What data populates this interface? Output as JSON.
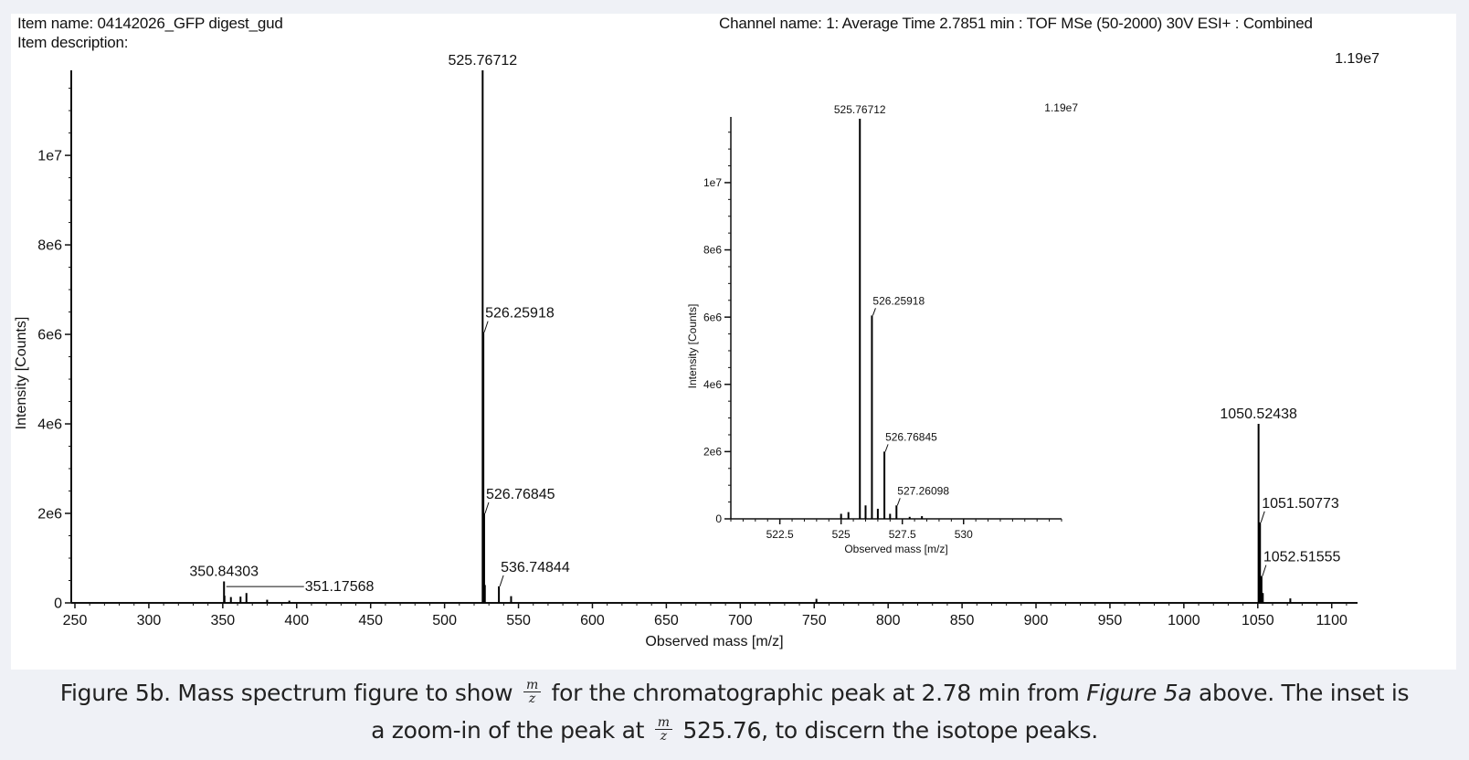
{
  "header": {
    "item_name": "Item name: 04142026_GFP digest_gud",
    "item_description": "Item description:",
    "channel_name": "Channel name: 1: Average Time 2.7851 min : TOF MSe (50-2000) 30V ESI+ : Combined"
  },
  "caption": {
    "prefix": "Figure 5b. Mass spectrum figure to show",
    "mid": "for the chromatographic peak at 2.78 min from",
    "ref": "Figure 5a",
    "after_ref": "above. The inset is",
    "line2_prefix": "a zoom-in of the peak at",
    "line2_suffix": "525.76, to discern the isotope peaks.",
    "frac_num": "m",
    "frac_den": "z"
  },
  "chart_data": [
    {
      "type": "line",
      "name": "main-spectrum",
      "xlabel": "Observed mass [m/z]",
      "ylabel": "Intensity [Counts]",
      "xlim": [
        250,
        1115
      ],
      "ylim": [
        0,
        11900000
      ],
      "max_label": "1.19e7",
      "x_ticks": [
        250,
        300,
        350,
        400,
        450,
        500,
        550,
        600,
        650,
        700,
        750,
        800,
        850,
        900,
        950,
        1000,
        1050,
        1100
      ],
      "y_ticks": [
        {
          "v": 0,
          "label": "0"
        },
        {
          "v": 2000000,
          "label": "2e6"
        },
        {
          "v": 4000000,
          "label": "4e6"
        },
        {
          "v": 6000000,
          "label": "6e6"
        },
        {
          "v": 8000000,
          "label": "8e6"
        },
        {
          "v": 10000000,
          "label": "1e7"
        }
      ],
      "peaks": [
        {
          "x": 350.84303,
          "y": 480000
        },
        {
          "x": 351.17568,
          "y": 160000
        },
        {
          "x": 355.5,
          "y": 130000
        },
        {
          "x": 362.0,
          "y": 140000
        },
        {
          "x": 366.0,
          "y": 220000
        },
        {
          "x": 380.0,
          "y": 70000
        },
        {
          "x": 395.0,
          "y": 50000
        },
        {
          "x": 525.76712,
          "y": 11900000
        },
        {
          "x": 526.25918,
          "y": 6050000
        },
        {
          "x": 526.76845,
          "y": 2000000
        },
        {
          "x": 527.26098,
          "y": 400000
        },
        {
          "x": 536.74844,
          "y": 370000
        },
        {
          "x": 545.0,
          "y": 150000
        },
        {
          "x": 751.5,
          "y": 90000
        },
        {
          "x": 1050.52438,
          "y": 4000000
        },
        {
          "x": 1051.50773,
          "y": 1800000
        },
        {
          "x": 1052.51555,
          "y": 600000
        },
        {
          "x": 1053.4,
          "y": 220000
        },
        {
          "x": 1072.0,
          "y": 100000
        }
      ],
      "labels": [
        {
          "text": "525.76712",
          "x": 525.76712,
          "y": 11900000,
          "style": "top"
        },
        {
          "text": "526.25918",
          "x": 526.25918,
          "y": 6050000,
          "style": "leader"
        },
        {
          "text": "526.76845",
          "x": 526.76845,
          "y": 2000000,
          "style": "leader"
        },
        {
          "text": "536.74844",
          "x": 536.74844,
          "y": 370000,
          "style": "leader"
        },
        {
          "text": "350.84303",
          "x": 350.84303,
          "y": 480000,
          "style": "top"
        },
        {
          "text": "351.17568",
          "x": 351.17568,
          "y": 160000,
          "style": "dash"
        },
        {
          "text": "1050.52438",
          "x": 1050.52438,
          "y": 4000000,
          "style": "top"
        },
        {
          "text": "1051.50773",
          "x": 1051.50773,
          "y": 1800000,
          "style": "leader"
        },
        {
          "text": "1052.51555",
          "x": 1052.51555,
          "y": 600000,
          "style": "leader"
        }
      ]
    },
    {
      "type": "line",
      "name": "inset-spectrum",
      "xlabel": "Observed mass [m/z]",
      "ylabel": "Intensity [Counts]",
      "xlim": [
        520.5,
        534.0
      ],
      "ylim": [
        0,
        11900000
      ],
      "max_label": "1.19e7",
      "x_ticks": [
        {
          "v": 522.5,
          "label": "522.5"
        },
        {
          "v": 525,
          "label": "525"
        },
        {
          "v": 527.5,
          "label": "527.5"
        },
        {
          "v": 530,
          "label": "530"
        }
      ],
      "y_ticks": [
        {
          "v": 0,
          "label": "0"
        },
        {
          "v": 2000000,
          "label": "2e6"
        },
        {
          "v": 4000000,
          "label": "4e6"
        },
        {
          "v": 6000000,
          "label": "6e6"
        },
        {
          "v": 8000000,
          "label": "8e6"
        },
        {
          "v": 10000000,
          "label": "1e7"
        }
      ],
      "peaks": [
        {
          "x": 525.0,
          "y": 150000
        },
        {
          "x": 525.3,
          "y": 200000
        },
        {
          "x": 525.76712,
          "y": 11900000
        },
        {
          "x": 526.0,
          "y": 400000
        },
        {
          "x": 526.25918,
          "y": 6050000
        },
        {
          "x": 526.5,
          "y": 300000
        },
        {
          "x": 526.76845,
          "y": 2000000
        },
        {
          "x": 527.0,
          "y": 150000
        },
        {
          "x": 527.26098,
          "y": 400000
        },
        {
          "x": 527.8,
          "y": 60000
        },
        {
          "x": 528.3,
          "y": 80000
        }
      ],
      "labels": [
        {
          "text": "525.76712",
          "x": 525.76712,
          "y": 11900000,
          "style": "top"
        },
        {
          "text": "526.25918",
          "x": 526.25918,
          "y": 6050000,
          "style": "leader"
        },
        {
          "text": "526.76845",
          "x": 526.76845,
          "y": 2000000,
          "style": "leader"
        },
        {
          "text": "527.26098",
          "x": 527.26098,
          "y": 400000,
          "style": "leader"
        }
      ]
    }
  ]
}
